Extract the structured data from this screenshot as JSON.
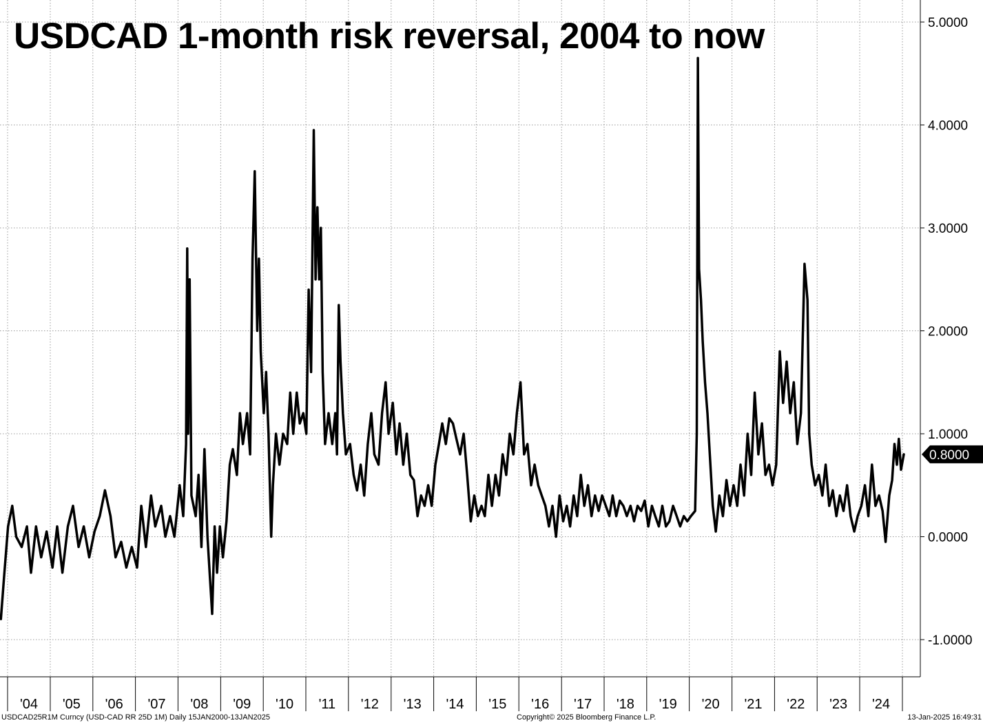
{
  "title": "USDCAD 1-month risk reversal, 2004 to now",
  "footer": {
    "left": "USDCAD25R1M Curncy (USD-CAD RR 25D 1M)  Daily 15JAN2000-13JAN2025",
    "center": "Copyright© 2025 Bloomberg Finance L.P.",
    "right": "13-Jan-2025 16:49:31"
  },
  "last_value_label": "0.8000",
  "colors": {
    "line": "#000000",
    "grid": "#9a9a9a",
    "background": "#ffffff",
    "badge": "#000000"
  },
  "chart_data": {
    "type": "line",
    "title": "USDCAD 1-month risk reversal, 2004 to now",
    "xlabel": "",
    "ylabel": "",
    "ylim": [
      -1.35,
      5.25
    ],
    "xlim": [
      "2003-11-01",
      "2025-01-13"
    ],
    "grid": true,
    "y_ticks": [
      5.0,
      4.0,
      3.0,
      2.0,
      1.0,
      0.0,
      -1.0
    ],
    "y_tick_labels": [
      "5.0000",
      "4.0000",
      "3.0000",
      "2.0000",
      "1.0000",
      "0.0000",
      "-1.0000"
    ],
    "x_tick_labels": [
      "'04",
      "'05",
      "'06",
      "'07",
      "'08",
      "'09",
      "'10",
      "'11",
      "'12",
      "'13",
      "'14",
      "'15",
      "'16",
      "'17",
      "'18",
      "'19",
      "'20",
      "'21",
      "'22",
      "'23",
      "'24"
    ],
    "x_tick_dates": [
      "2004-01-01",
      "2005-01-01",
      "2006-01-01",
      "2007-01-01",
      "2008-01-01",
      "2009-01-01",
      "2010-01-01",
      "2011-01-01",
      "2012-01-01",
      "2013-01-01",
      "2014-01-01",
      "2015-01-01",
      "2016-01-01",
      "2017-01-01",
      "2018-01-01",
      "2019-01-01",
      "2020-01-01",
      "2021-01-01",
      "2022-01-01",
      "2023-01-01",
      "2024-01-01",
      "2025-01-01"
    ],
    "last_value": 0.8,
    "series": [
      {
        "points": [
          [
            "2003-11-05",
            -0.8
          ],
          [
            "2003-12-01",
            -0.4
          ],
          [
            "2004-01-05",
            0.1
          ],
          [
            "2004-02-10",
            0.3
          ],
          [
            "2004-03-15",
            0.0
          ],
          [
            "2004-05-01",
            -0.1
          ],
          [
            "2004-06-15",
            0.1
          ],
          [
            "2004-07-20",
            -0.35
          ],
          [
            "2004-09-01",
            0.1
          ],
          [
            "2004-10-15",
            -0.2
          ],
          [
            "2004-12-01",
            0.05
          ],
          [
            "2005-01-20",
            -0.3
          ],
          [
            "2005-03-01",
            0.1
          ],
          [
            "2005-04-15",
            -0.35
          ],
          [
            "2005-06-01",
            0.1
          ],
          [
            "2005-07-15",
            0.3
          ],
          [
            "2005-09-01",
            -0.1
          ],
          [
            "2005-10-15",
            0.1
          ],
          [
            "2005-12-01",
            -0.2
          ],
          [
            "2006-01-15",
            0.05
          ],
          [
            "2006-03-01",
            0.2
          ],
          [
            "2006-04-15",
            0.45
          ],
          [
            "2006-06-01",
            0.2
          ],
          [
            "2006-07-15",
            -0.2
          ],
          [
            "2006-09-01",
            -0.05
          ],
          [
            "2006-10-15",
            -0.3
          ],
          [
            "2006-12-01",
            -0.1
          ],
          [
            "2007-01-15",
            -0.3
          ],
          [
            "2007-02-20",
            0.3
          ],
          [
            "2007-04-01",
            -0.1
          ],
          [
            "2007-05-15",
            0.4
          ],
          [
            "2007-06-20",
            0.1
          ],
          [
            "2007-08-10",
            0.3
          ],
          [
            "2007-09-15",
            0.0
          ],
          [
            "2007-10-25",
            0.2
          ],
          [
            "2007-12-01",
            0.0
          ],
          [
            "2008-01-15",
            0.5
          ],
          [
            "2008-02-15",
            0.2
          ],
          [
            "2008-03-10",
            0.9
          ],
          [
            "2008-03-20",
            2.8
          ],
          [
            "2008-03-28",
            1.0
          ],
          [
            "2008-04-10",
            2.5
          ],
          [
            "2008-04-25",
            0.4
          ],
          [
            "2008-06-01",
            0.2
          ],
          [
            "2008-06-25",
            0.6
          ],
          [
            "2008-07-20",
            -0.1
          ],
          [
            "2008-08-15",
            0.85
          ],
          [
            "2008-09-10",
            0.0
          ],
          [
            "2008-10-01",
            -0.4
          ],
          [
            "2008-10-20",
            -0.75
          ],
          [
            "2008-11-10",
            0.1
          ],
          [
            "2008-12-01",
            -0.35
          ],
          [
            "2008-12-25",
            0.1
          ],
          [
            "2009-01-20",
            -0.2
          ],
          [
            "2009-02-20",
            0.15
          ],
          [
            "2009-03-20",
            0.7
          ],
          [
            "2009-04-15",
            0.85
          ],
          [
            "2009-05-20",
            0.6
          ],
          [
            "2009-06-15",
            1.2
          ],
          [
            "2009-07-10",
            0.9
          ],
          [
            "2009-08-15",
            1.2
          ],
          [
            "2009-09-10",
            0.8
          ],
          [
            "2009-10-01",
            2.7
          ],
          [
            "2009-10-20",
            3.55
          ],
          [
            "2009-11-10",
            2.0
          ],
          [
            "2009-11-25",
            2.7
          ],
          [
            "2009-12-10",
            1.8
          ],
          [
            "2010-01-05",
            1.2
          ],
          [
            "2010-01-25",
            1.6
          ],
          [
            "2010-02-15",
            1.0
          ],
          [
            "2010-03-10",
            0.0
          ],
          [
            "2010-03-25",
            0.5
          ],
          [
            "2010-04-20",
            1.0
          ],
          [
            "2010-05-20",
            0.7
          ],
          [
            "2010-06-20",
            1.0
          ],
          [
            "2010-07-25",
            0.9
          ],
          [
            "2010-08-20",
            1.4
          ],
          [
            "2010-09-15",
            1.0
          ],
          [
            "2010-10-15",
            1.4
          ],
          [
            "2010-11-10",
            1.1
          ],
          [
            "2010-12-10",
            1.2
          ],
          [
            "2011-01-05",
            1.0
          ],
          [
            "2011-01-25",
            2.4
          ],
          [
            "2011-02-15",
            1.6
          ],
          [
            "2011-03-10",
            3.95
          ],
          [
            "2011-03-25",
            2.5
          ],
          [
            "2011-04-10",
            3.2
          ],
          [
            "2011-04-25",
            2.5
          ],
          [
            "2011-05-10",
            3.0
          ],
          [
            "2011-05-25",
            1.6
          ],
          [
            "2011-06-15",
            0.9
          ],
          [
            "2011-07-15",
            1.2
          ],
          [
            "2011-08-15",
            0.9
          ],
          [
            "2011-09-10",
            1.2
          ],
          [
            "2011-09-25",
            0.8
          ],
          [
            "2011-10-10",
            2.25
          ],
          [
            "2011-10-25",
            1.7
          ],
          [
            "2011-11-15",
            1.2
          ],
          [
            "2011-12-10",
            0.8
          ],
          [
            "2012-01-15",
            0.9
          ],
          [
            "2012-02-15",
            0.6
          ],
          [
            "2012-03-15",
            0.45
          ],
          [
            "2012-04-15",
            0.7
          ],
          [
            "2012-05-15",
            0.4
          ],
          [
            "2012-06-15",
            0.9
          ],
          [
            "2012-07-15",
            1.2
          ],
          [
            "2012-08-10",
            0.8
          ],
          [
            "2012-09-15",
            0.7
          ],
          [
            "2012-10-15",
            1.2
          ],
          [
            "2012-11-15",
            1.5
          ],
          [
            "2012-12-10",
            1.0
          ],
          [
            "2013-01-15",
            1.3
          ],
          [
            "2013-02-15",
            0.8
          ],
          [
            "2013-03-15",
            1.1
          ],
          [
            "2013-04-15",
            0.7
          ],
          [
            "2013-05-15",
            1.0
          ],
          [
            "2013-06-15",
            0.6
          ],
          [
            "2013-07-15",
            0.55
          ],
          [
            "2013-08-15",
            0.2
          ],
          [
            "2013-09-15",
            0.4
          ],
          [
            "2013-10-15",
            0.3
          ],
          [
            "2013-11-15",
            0.5
          ],
          [
            "2013-12-15",
            0.3
          ],
          [
            "2014-01-15",
            0.7
          ],
          [
            "2014-02-15",
            0.9
          ],
          [
            "2014-03-15",
            1.1
          ],
          [
            "2014-04-15",
            0.9
          ],
          [
            "2014-05-15",
            1.15
          ],
          [
            "2014-06-15",
            1.1
          ],
          [
            "2014-07-15",
            0.95
          ],
          [
            "2014-08-15",
            0.8
          ],
          [
            "2014-09-15",
            1.0
          ],
          [
            "2014-10-15",
            0.6
          ],
          [
            "2014-11-15",
            0.15
          ],
          [
            "2014-12-15",
            0.4
          ],
          [
            "2015-01-15",
            0.2
          ],
          [
            "2015-02-15",
            0.3
          ],
          [
            "2015-03-15",
            0.2
          ],
          [
            "2015-04-15",
            0.6
          ],
          [
            "2015-05-15",
            0.3
          ],
          [
            "2015-06-15",
            0.6
          ],
          [
            "2015-07-15",
            0.4
          ],
          [
            "2015-08-15",
            0.8
          ],
          [
            "2015-09-15",
            0.6
          ],
          [
            "2015-10-15",
            1.0
          ],
          [
            "2015-11-15",
            0.8
          ],
          [
            "2015-12-15",
            1.2
          ],
          [
            "2016-01-15",
            1.5
          ],
          [
            "2016-02-15",
            0.8
          ],
          [
            "2016-03-15",
            0.9
          ],
          [
            "2016-04-15",
            0.5
          ],
          [
            "2016-05-15",
            0.7
          ],
          [
            "2016-06-15",
            0.5
          ],
          [
            "2016-07-15",
            0.4
          ],
          [
            "2016-08-15",
            0.3
          ],
          [
            "2016-09-15",
            0.1
          ],
          [
            "2016-10-15",
            0.3
          ],
          [
            "2016-11-15",
            0.0
          ],
          [
            "2016-12-15",
            0.4
          ],
          [
            "2017-01-15",
            0.15
          ],
          [
            "2017-02-15",
            0.3
          ],
          [
            "2017-03-15",
            0.1
          ],
          [
            "2017-04-15",
            0.4
          ],
          [
            "2017-05-15",
            0.2
          ],
          [
            "2017-06-15",
            0.6
          ],
          [
            "2017-07-15",
            0.3
          ],
          [
            "2017-08-15",
            0.5
          ],
          [
            "2017-09-15",
            0.2
          ],
          [
            "2017-10-15",
            0.4
          ],
          [
            "2017-11-15",
            0.25
          ],
          [
            "2017-12-15",
            0.4
          ],
          [
            "2018-01-15",
            0.3
          ],
          [
            "2018-02-15",
            0.2
          ],
          [
            "2018-03-15",
            0.4
          ],
          [
            "2018-04-15",
            0.2
          ],
          [
            "2018-05-15",
            0.35
          ],
          [
            "2018-06-15",
            0.3
          ],
          [
            "2018-07-15",
            0.2
          ],
          [
            "2018-08-15",
            0.3
          ],
          [
            "2018-09-15",
            0.15
          ],
          [
            "2018-10-15",
            0.3
          ],
          [
            "2018-11-15",
            0.25
          ],
          [
            "2018-12-15",
            0.35
          ],
          [
            "2019-01-15",
            0.1
          ],
          [
            "2019-02-15",
            0.3
          ],
          [
            "2019-03-15",
            0.2
          ],
          [
            "2019-04-15",
            0.1
          ],
          [
            "2019-05-15",
            0.3
          ],
          [
            "2019-06-15",
            0.1
          ],
          [
            "2019-07-15",
            0.15
          ],
          [
            "2019-08-15",
            0.3
          ],
          [
            "2019-09-15",
            0.2
          ],
          [
            "2019-10-15",
            0.1
          ],
          [
            "2019-11-15",
            0.2
          ],
          [
            "2019-12-15",
            0.15
          ],
          [
            "2020-01-15",
            0.2
          ],
          [
            "2020-02-20",
            0.25
          ],
          [
            "2020-03-05",
            1.0
          ],
          [
            "2020-03-15",
            4.65
          ],
          [
            "2020-03-25",
            2.6
          ],
          [
            "2020-04-10",
            2.3
          ],
          [
            "2020-04-25",
            1.9
          ],
          [
            "2020-05-15",
            1.5
          ],
          [
            "2020-06-05",
            1.2
          ],
          [
            "2020-06-25",
            0.8
          ],
          [
            "2020-07-20",
            0.3
          ],
          [
            "2020-08-15",
            0.05
          ],
          [
            "2020-09-15",
            0.4
          ],
          [
            "2020-10-15",
            0.2
          ],
          [
            "2020-11-15",
            0.55
          ],
          [
            "2020-12-15",
            0.3
          ],
          [
            "2021-01-15",
            0.5
          ],
          [
            "2021-02-15",
            0.3
          ],
          [
            "2021-03-15",
            0.7
          ],
          [
            "2021-04-15",
            0.4
          ],
          [
            "2021-05-15",
            1.0
          ],
          [
            "2021-06-15",
            0.6
          ],
          [
            "2021-07-15",
            1.4
          ],
          [
            "2021-08-15",
            0.8
          ],
          [
            "2021-09-15",
            1.1
          ],
          [
            "2021-10-15",
            0.6
          ],
          [
            "2021-11-15",
            0.7
          ],
          [
            "2021-12-15",
            0.5
          ],
          [
            "2022-01-15",
            0.7
          ],
          [
            "2022-02-15",
            1.8
          ],
          [
            "2022-03-15",
            1.3
          ],
          [
            "2022-04-15",
            1.7
          ],
          [
            "2022-05-15",
            1.2
          ],
          [
            "2022-06-15",
            1.5
          ],
          [
            "2022-07-15",
            0.9
          ],
          [
            "2022-08-15",
            1.2
          ],
          [
            "2022-09-15",
            2.65
          ],
          [
            "2022-10-10",
            2.3
          ],
          [
            "2022-10-25",
            1.0
          ],
          [
            "2022-11-15",
            0.7
          ],
          [
            "2022-12-15",
            0.5
          ],
          [
            "2023-01-15",
            0.6
          ],
          [
            "2023-02-15",
            0.4
          ],
          [
            "2023-03-15",
            0.7
          ],
          [
            "2023-04-15",
            0.3
          ],
          [
            "2023-05-15",
            0.45
          ],
          [
            "2023-06-15",
            0.2
          ],
          [
            "2023-07-15",
            0.4
          ],
          [
            "2023-08-15",
            0.25
          ],
          [
            "2023-09-15",
            0.5
          ],
          [
            "2023-10-15",
            0.2
          ],
          [
            "2023-11-15",
            0.05
          ],
          [
            "2023-12-15",
            0.2
          ],
          [
            "2024-01-15",
            0.3
          ],
          [
            "2024-02-15",
            0.5
          ],
          [
            "2024-03-15",
            0.2
          ],
          [
            "2024-04-15",
            0.7
          ],
          [
            "2024-05-15",
            0.3
          ],
          [
            "2024-06-15",
            0.4
          ],
          [
            "2024-07-15",
            0.25
          ],
          [
            "2024-08-10",
            -0.05
          ],
          [
            "2024-09-10",
            0.4
          ],
          [
            "2024-10-05",
            0.55
          ],
          [
            "2024-10-25",
            0.9
          ],
          [
            "2024-11-15",
            0.7
          ],
          [
            "2024-12-01",
            0.95
          ],
          [
            "2024-12-20",
            0.65
          ],
          [
            "2025-01-13",
            0.8
          ]
        ]
      }
    ]
  }
}
